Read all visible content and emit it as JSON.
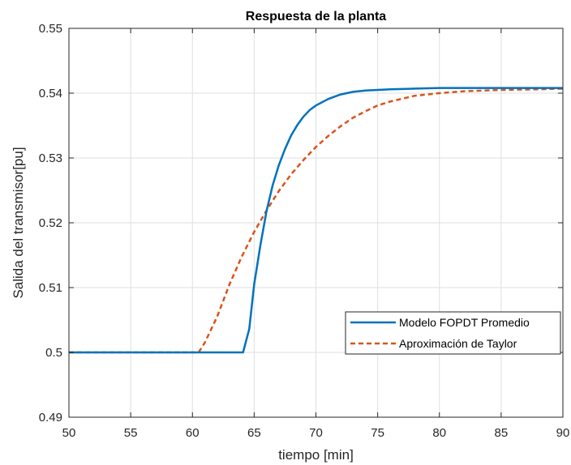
{
  "chart_data": {
    "type": "line",
    "title": "Respuesta de la planta",
    "xlabel": "tiempo [min]",
    "ylabel": "Salida del transmisor[pu]",
    "xlim": [
      50,
      90
    ],
    "ylim": [
      0.49,
      0.55
    ],
    "xticks": [
      50,
      55,
      60,
      65,
      70,
      75,
      80,
      85,
      90
    ],
    "yticks": [
      0.49,
      0.5,
      0.51,
      0.52,
      0.53,
      0.54,
      0.55
    ],
    "xtick_labels": [
      "50",
      "55",
      "60",
      "65",
      "70",
      "75",
      "80",
      "85",
      "90"
    ],
    "ytick_labels": [
      "0.49",
      "0.5",
      "0.51",
      "0.52",
      "0.53",
      "0.54",
      "0.55"
    ],
    "grid": true,
    "legend_position": "bottom-right",
    "series": [
      {
        "name": "Modelo FOPDT Promedio",
        "color": "#0072BD",
        "style": "solid",
        "x": [
          50,
          64.1,
          64.6,
          65.0,
          65.5,
          66.0,
          66.5,
          67.0,
          67.5,
          68.0,
          68.5,
          69.0,
          69.5,
          70.0,
          71.0,
          72.0,
          73.0,
          74.0,
          75.0,
          76.0,
          78.0,
          80.0,
          85.0,
          90.0
        ],
        "y": [
          0.5,
          0.5,
          0.5036,
          0.5105,
          0.5165,
          0.5218,
          0.5258,
          0.5289,
          0.5314,
          0.5335,
          0.5351,
          0.5364,
          0.5374,
          0.5381,
          0.5391,
          0.5398,
          0.5402,
          0.5404,
          0.5405,
          0.5406,
          0.5407,
          0.5408,
          0.5408,
          0.5408
        ]
      },
      {
        "name": "Aproximación de Taylor",
        "color": "#D95319",
        "style": "dashed",
        "x": [
          50,
          60.5,
          61.0,
          62.0,
          63.0,
          64.0,
          65.0,
          66.0,
          67.0,
          68.0,
          69.0,
          70.0,
          71.0,
          72.0,
          73.0,
          74.0,
          75.0,
          76.0,
          78.0,
          80.0,
          82.0,
          85.0,
          88.0,
          90.0
        ],
        "y": [
          0.5,
          0.5,
          0.5015,
          0.5055,
          0.5105,
          0.5148,
          0.5186,
          0.5219,
          0.5249,
          0.5275,
          0.5297,
          0.5317,
          0.5334,
          0.5349,
          0.5362,
          0.5372,
          0.5381,
          0.5387,
          0.5396,
          0.54,
          0.5403,
          0.5405,
          0.5406,
          0.5407
        ]
      }
    ]
  }
}
